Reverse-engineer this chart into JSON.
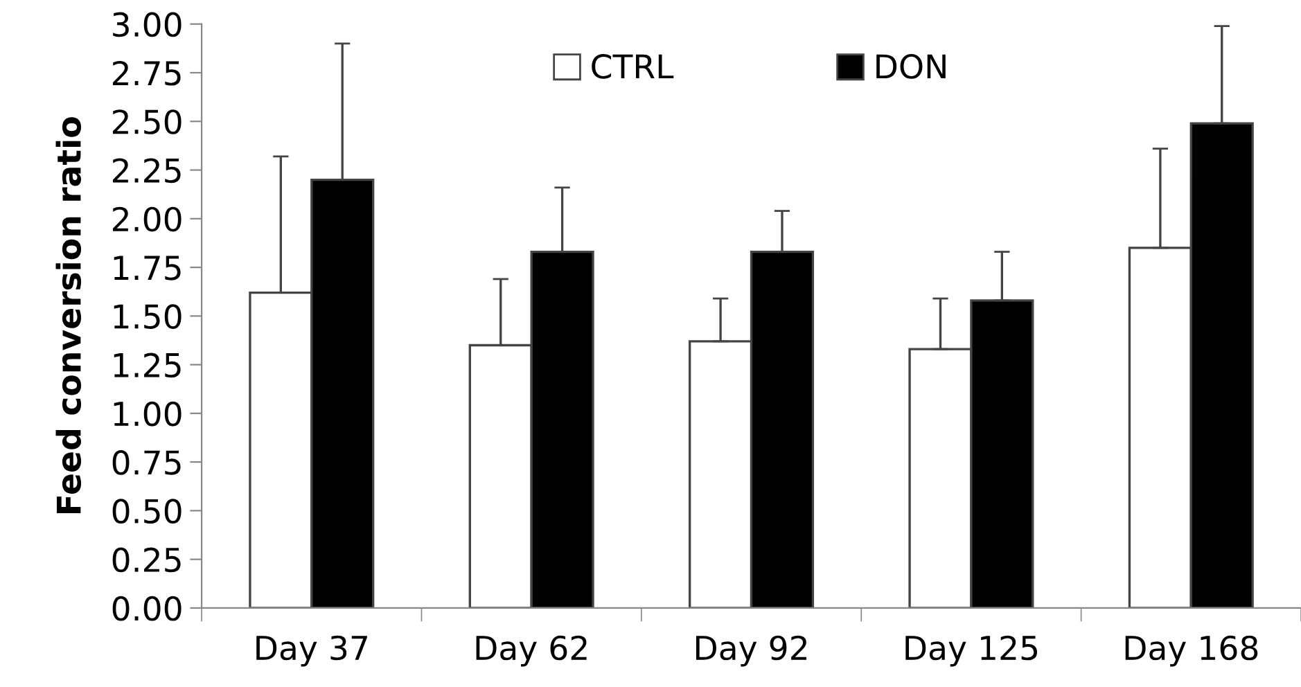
{
  "chart_data": {
    "type": "bar",
    "ylabel": "Feed conversion ratio",
    "categories": [
      "Day 37",
      "Day 62",
      "Day 92",
      "Day 125",
      "Day 168"
    ],
    "series": [
      {
        "name": "CTRL",
        "color": "#ffffff",
        "values": [
          1.62,
          1.35,
          1.37,
          1.33,
          1.85
        ],
        "errors": [
          [
            1.62,
            2.32
          ],
          [
            1.35,
            1.69
          ],
          [
            1.37,
            1.59
          ],
          [
            1.33,
            1.59
          ],
          [
            1.85,
            2.36
          ]
        ]
      },
      {
        "name": "DON",
        "color": "#000000",
        "values": [
          2.2,
          1.83,
          1.83,
          1.58,
          2.49
        ],
        "errors": [
          [
            2.2,
            2.9
          ],
          [
            1.83,
            2.16
          ],
          [
            1.83,
            2.04
          ],
          [
            1.58,
            1.83
          ],
          [
            2.49,
            2.99
          ]
        ]
      }
    ],
    "ylim": [
      0,
      3
    ],
    "yticks": [
      {
        "value": 0,
        "label": "0.00"
      },
      {
        "value": 0.25,
        "label": "0.25"
      },
      {
        "value": 0.5,
        "label": "0.50"
      },
      {
        "value": 0.75,
        "label": "0.75"
      },
      {
        "value": 1,
        "label": "1.00"
      },
      {
        "value": 1.25,
        "label": "1.25"
      },
      {
        "value": 1.5,
        "label": "1.50"
      },
      {
        "value": 1.75,
        "label": "1.75"
      },
      {
        "value": 2,
        "label": "2.00"
      },
      {
        "value": 2.25,
        "label": "2.25"
      },
      {
        "value": 2.5,
        "label": "2.50"
      },
      {
        "value": 2.75,
        "label": "2.75"
      },
      {
        "value": 3,
        "label": "3.00"
      }
    ],
    "grid": false,
    "legend": "top"
  }
}
